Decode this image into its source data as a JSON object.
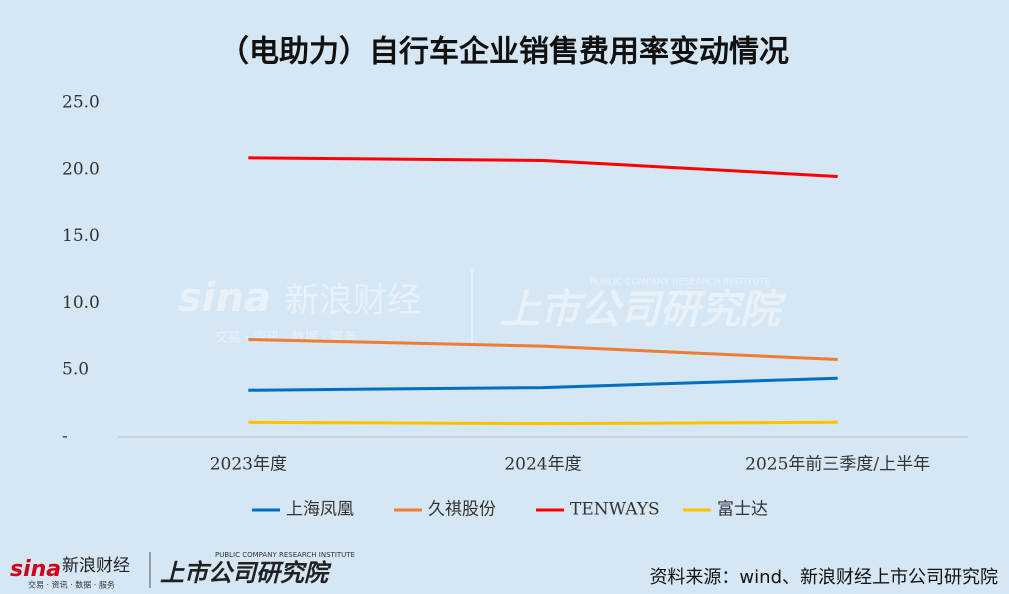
{
  "chart_data": {
    "type": "line",
    "title": "（电助力）自行车企业销售费用率变动情况",
    "categories": [
      "2023年度",
      "2024年度",
      "2025年前三季度/上半年"
    ],
    "series": [
      {
        "name": "上海凤凰",
        "color": "#0070c0",
        "values": [
          3.5,
          3.7,
          4.4
        ]
      },
      {
        "name": "久祺股份",
        "color": "#ed7d31",
        "values": [
          7.3,
          6.8,
          5.8
        ]
      },
      {
        "name": "TENWAYS",
        "color": "#ff0000",
        "values": [
          20.9,
          20.7,
          19.5
        ]
      },
      {
        "name": "富士达",
        "color": "#ffc000",
        "values": [
          1.1,
          1.0,
          1.1
        ]
      }
    ],
    "ylim": [
      0,
      25
    ],
    "yticks": [
      {
        "value": 0,
        "label": "-"
      },
      {
        "value": 5,
        "label": "5.0"
      },
      {
        "value": 10,
        "label": "10.0"
      },
      {
        "value": 15,
        "label": "15.0"
      },
      {
        "value": 20,
        "label": "20.0"
      },
      {
        "value": 25,
        "label": "25.0"
      }
    ],
    "grid": false,
    "legend": "bottom"
  },
  "branding": {
    "sina": "sina",
    "sina_name": "新浪财经",
    "sina_slogan": "交易 · 资讯 · 数据 · 服务",
    "institute": "上市公司研究院",
    "institute_en": "PUBLIC COMPANY RESEARCH INSTITUTE"
  },
  "source": "资料来源：wind、新浪财经上市公司研究院"
}
